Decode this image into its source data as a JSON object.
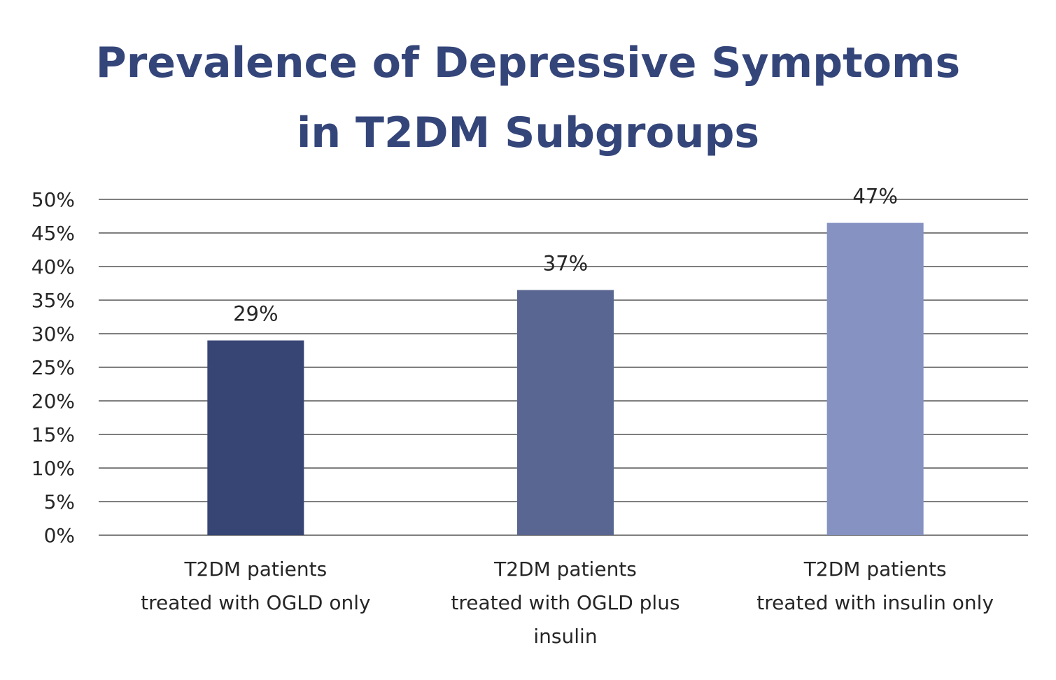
{
  "title_lines": [
    "Prevalence of Depressive Symptoms",
    "in T2DM Subgroups"
  ],
  "chart_data": {
    "type": "bar",
    "title": "Prevalence of Depressive Symptoms in T2DM Subgroups",
    "categories": [
      [
        "T2DM patients",
        "treated with OGLD only"
      ],
      [
        "T2DM patients",
        "treated with OGLD plus",
        "insulin"
      ],
      [
        "T2DM patients",
        "treated with insulin only"
      ]
    ],
    "values": [
      29,
      36.5,
      46.5
    ],
    "data_labels": [
      "29%",
      "37%",
      "47%"
    ],
    "bar_colors": [
      "#374574",
      "#596691",
      "#8592c2"
    ],
    "ylim": [
      0,
      50
    ],
    "yticks": [
      0,
      5,
      10,
      15,
      20,
      25,
      30,
      35,
      40,
      45,
      50
    ],
    "ytick_labels": [
      "0%",
      "5%",
      "10%",
      "15%",
      "20%",
      "25%",
      "30%",
      "35%",
      "40%",
      "45%",
      "50%"
    ],
    "grid": true,
    "legend": "none",
    "xlabel": "",
    "ylabel": ""
  },
  "colors": {
    "title": "#34457a",
    "grid": "#7f7f7f",
    "text": "#262626"
  }
}
